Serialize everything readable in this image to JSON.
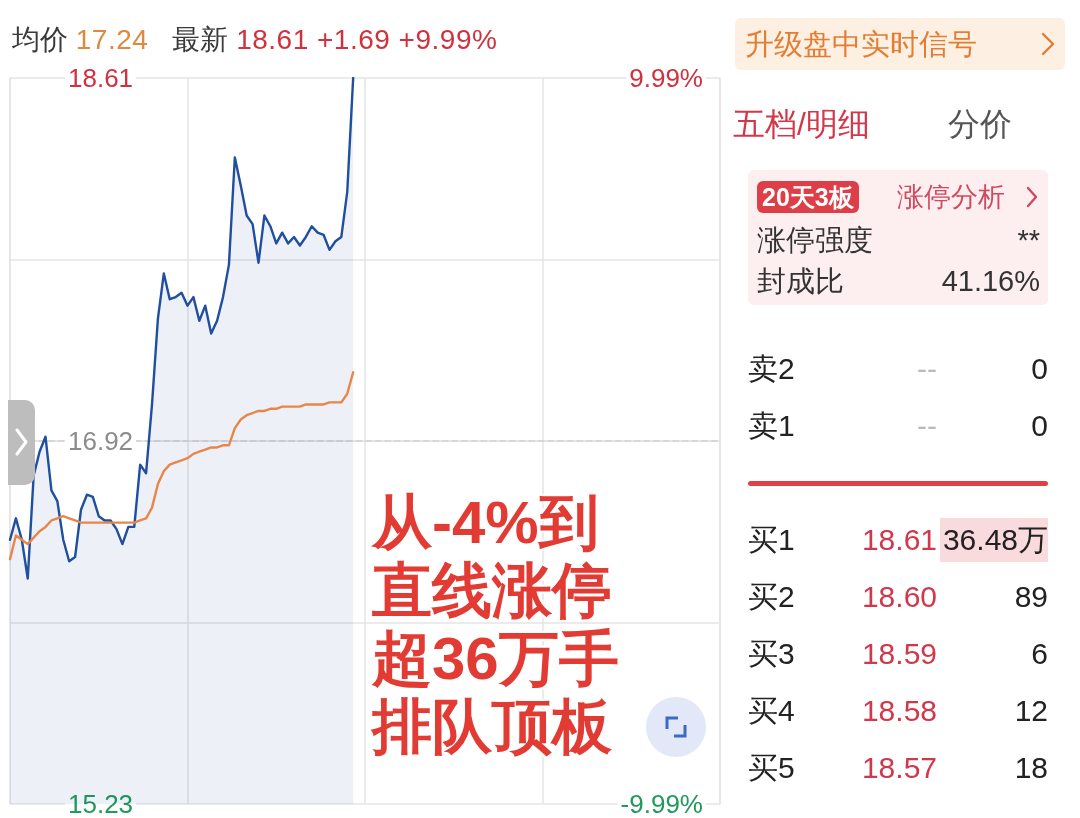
{
  "chart_data": [
    {
      "type": "line",
      "categories": [
        null,
        null,
        null,
        null,
        null,
        null,
        null,
        null,
        null,
        null,
        null,
        null,
        null,
        null,
        null,
        null,
        null,
        null,
        null,
        null,
        null,
        null,
        null,
        null,
        null,
        null,
        null,
        null,
        null,
        null,
        null,
        null,
        null,
        null,
        null,
        null,
        null,
        null,
        null,
        null,
        null,
        null,
        null,
        null,
        null,
        null,
        null,
        null,
        null,
        null,
        null,
        null,
        null,
        null,
        null,
        null,
        null,
        null,
        null,
        null,
        null,
        null,
        null,
        null,
        null,
        null,
        null,
        null,
        null,
        null,
        null,
        null,
        null,
        null,
        null,
        null,
        null,
        null,
        null,
        null,
        null,
        null,
        null,
        null,
        null,
        null,
        null,
        null,
        null,
        null,
        null,
        null,
        null,
        null,
        null,
        null,
        null,
        null,
        null,
        null,
        null,
        null,
        null,
        null,
        null,
        null,
        null,
        null,
        null,
        null,
        null,
        null,
        null,
        null,
        null,
        null,
        null,
        null,
        null,
        null,
        null
      ],
      "series": [
        {
          "type": "area",
          "color": "#1f4f9e",
          "values": [
            16.46,
            16.56,
            16.46,
            16.28,
            16.76,
            16.87,
            16.94,
            16.69,
            16.64,
            16.46,
            16.36,
            16.38,
            16.6,
            16.67,
            16.66,
            16.57,
            16.55,
            16.55,
            16.51,
            16.44,
            16.52,
            16.52,
            16.81,
            16.77,
            17.09,
            17.49,
            17.7,
            17.58,
            17.59,
            17.61,
            17.55,
            17.59,
            17.48,
            17.55,
            17.42,
            17.48,
            17.59,
            17.74,
            18.24,
            18.11,
            17.97,
            17.93,
            17.75,
            17.97,
            17.92,
            17.84,
            17.89,
            17.84,
            17.87,
            17.83,
            17.87,
            17.92,
            17.89,
            17.88,
            17.81,
            17.85,
            17.87,
            18.08,
            18.61,
            null,
            null,
            null,
            null,
            null,
            null,
            null,
            null,
            null,
            null,
            null,
            null,
            null,
            null,
            null,
            null,
            null,
            null,
            null,
            null,
            null,
            null,
            null,
            null,
            null,
            null,
            null,
            null,
            null,
            null,
            null,
            null,
            null,
            null,
            null,
            null,
            null,
            null,
            null,
            null,
            null,
            null,
            null,
            null,
            null,
            null,
            null,
            null,
            null,
            null,
            null,
            null,
            null,
            null,
            null,
            null,
            null,
            null,
            null,
            null,
            null,
            null
          ]
        },
        {
          "type": "line",
          "color": "#e8864a",
          "values": [
            16.37,
            16.48,
            16.46,
            16.44,
            16.47,
            16.5,
            16.52,
            16.55,
            16.56,
            16.57,
            16.56,
            16.55,
            16.54,
            16.54,
            16.54,
            16.54,
            16.54,
            16.54,
            16.54,
            16.54,
            16.54,
            16.54,
            16.55,
            16.56,
            16.61,
            16.72,
            16.78,
            16.81,
            16.82,
            16.83,
            16.84,
            16.86,
            16.87,
            16.88,
            16.89,
            16.89,
            16.9,
            16.9,
            16.98,
            17.02,
            17.04,
            17.05,
            17.06,
            17.06,
            17.07,
            17.07,
            17.08,
            17.08,
            17.08,
            17.08,
            17.09,
            17.09,
            17.09,
            17.09,
            17.1,
            17.1,
            17.1,
            17.14,
            17.24,
            null,
            null,
            null,
            null,
            null,
            null,
            null,
            null,
            null,
            null,
            null,
            null,
            null,
            null,
            null,
            null,
            null,
            null,
            null,
            null,
            null,
            null,
            null,
            null,
            null,
            null,
            null,
            null,
            null,
            null,
            null,
            null,
            null,
            null,
            null,
            null,
            null,
            null,
            null,
            null,
            null,
            null,
            null,
            null,
            null,
            null,
            null,
            null,
            null,
            null,
            null,
            null,
            null,
            null,
            null,
            null,
            null,
            null,
            null,
            null,
            null,
            null
          ]
        }
      ],
      "ylim": [
        15.23,
        18.61
      ],
      "yticks": [
        15.23,
        {
          "value": 16.075,
          "label": null
        },
        16.92,
        {
          "value": 17.765,
          "label": null
        },
        18.61
      ],
      "y2lim": [
        -9.99,
        9.99
      ],
      "y2ticks": [
        {
          "value": -9.99,
          "label": "-9.99%"
        },
        {
          "value": 9.99,
          "label": "9.99%"
        }
      ],
      "ref_lines": [
        {
          "axis": "y",
          "value": 16.92,
          "color": "#9a9a9a",
          "line_style": "dashed"
        }
      ],
      "grid": true,
      "marker": "none",
      "annotations": [
        "均价 17.24",
        "最新 18.61 +1.69 +9.99%",
        "从-4%到直线涨停",
        "超36万手排队顶板"
      ]
    },
    {
      "type": "other",
      "title": "五档/明细",
      "subtitle": "分价",
      "categories": [
        "卖2",
        "卖1",
        "买1",
        "买2",
        "买3",
        "买4",
        "买5"
      ],
      "series": [
        {
          "color": "#d0394c",
          "values": [
            null,
            null,
            18.61,
            18.6,
            18.59,
            18.58,
            18.57
          ],
          "value_labels": [
            "--",
            "--",
            "18.61",
            "18.60",
            "18.59",
            "18.58",
            "18.57"
          ]
        }
      ],
      "annotations": [
        "升级盘中实时信号",
        "20天3板",
        "涨停分析",
        "涨停强度",
        "**",
        "封成比",
        "41.16%",
        "0",
        "0",
        "36.48万",
        "89",
        "6",
        "12",
        "18"
      ]
    }
  ]
}
